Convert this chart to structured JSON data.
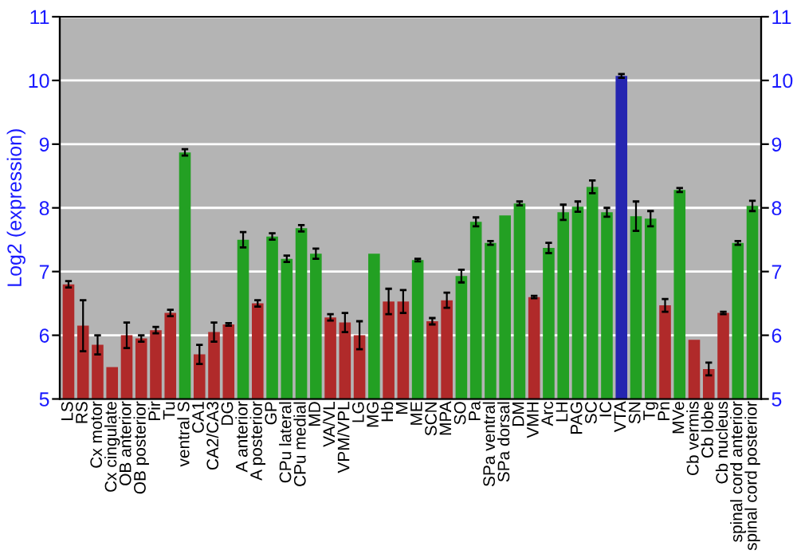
{
  "chart_data": {
    "type": "bar",
    "ylabel": "Log2 (expression)",
    "categories": [
      "LS",
      "RS",
      "Cx motor",
      "Cx cingulate",
      "OB anterior",
      "OB posterior",
      "Pir",
      "Tu",
      "ventral S",
      "CA1",
      "CA2/CA3",
      "DG",
      "A anterior",
      "A posterior",
      "GP",
      "CPu lateral",
      "CPu medial",
      "MD",
      "VA/VL",
      "VPM/VPL",
      "LG",
      "MG",
      "Hb",
      "M",
      "ME",
      "SCN",
      "MPA",
      "SO",
      "Pa",
      "SPa ventral",
      "SPa dorsal",
      "DM",
      "VMH",
      "Arc",
      "LH",
      "PAG",
      "SC",
      "IC",
      "VTA",
      "SN",
      "Tg",
      "Pn",
      "MVe",
      "Cb vermis",
      "Cb lobe",
      "Cb nucleus",
      "spinal cord anterior",
      "spinal cord posterior"
    ],
    "values": [
      6.8,
      6.15,
      5.85,
      5.5,
      6.0,
      5.95,
      6.08,
      6.35,
      8.87,
      5.7,
      6.05,
      6.17,
      7.5,
      6.5,
      7.55,
      7.2,
      7.68,
      7.28,
      6.28,
      6.2,
      6.0,
      7.28,
      6.53,
      6.53,
      7.18,
      6.22,
      6.55,
      6.93,
      7.78,
      7.45,
      7.88,
      8.07,
      6.6,
      7.37,
      7.93,
      8.02,
      8.33,
      7.93,
      10.07,
      7.87,
      7.83,
      6.47,
      8.28,
      5.93,
      5.47,
      6.35,
      7.45,
      8.03
    ],
    "errors": [
      0.05,
      0.4,
      0.15,
      null,
      0.2,
      0.05,
      0.05,
      0.05,
      0.05,
      0.15,
      0.15,
      0.02,
      0.12,
      0.05,
      0.05,
      0.05,
      0.05,
      0.08,
      0.05,
      0.15,
      0.22,
      null,
      0.2,
      0.18,
      0.02,
      0.05,
      0.12,
      0.1,
      0.07,
      0.03,
      null,
      0.03,
      0.02,
      0.08,
      0.12,
      0.08,
      0.1,
      0.07,
      0.03,
      0.23,
      0.12,
      0.1,
      0.03,
      null,
      0.1,
      0.02,
      0.03,
      0.08
    ],
    "colors": [
      "#b02a2a",
      "#b02a2a",
      "#b02a2a",
      "#b02a2a",
      "#b02a2a",
      "#b02a2a",
      "#b02a2a",
      "#b02a2a",
      "#23a023",
      "#b02a2a",
      "#b02a2a",
      "#b02a2a",
      "#23a023",
      "#b02a2a",
      "#23a023",
      "#23a023",
      "#23a023",
      "#23a023",
      "#b02a2a",
      "#b02a2a",
      "#b02a2a",
      "#23a023",
      "#b02a2a",
      "#b02a2a",
      "#23a023",
      "#b02a2a",
      "#b02a2a",
      "#23a023",
      "#23a023",
      "#23a023",
      "#23a023",
      "#23a023",
      "#b02a2a",
      "#23a023",
      "#23a023",
      "#23a023",
      "#23a023",
      "#23a023",
      "#2525b0",
      "#23a023",
      "#23a023",
      "#b02a2a",
      "#23a023",
      "#b02a2a",
      "#b02a2a",
      "#b02a2a",
      "#23a023",
      "#23a023"
    ],
    "ylim": [
      5,
      11
    ],
    "yticks": [
      5,
      6,
      7,
      8,
      9,
      10,
      11
    ],
    "y2lim": [
      5,
      11
    ],
    "y2ticks": [
      5,
      6,
      7,
      8,
      9,
      10,
      11
    ],
    "grid": "y"
  }
}
